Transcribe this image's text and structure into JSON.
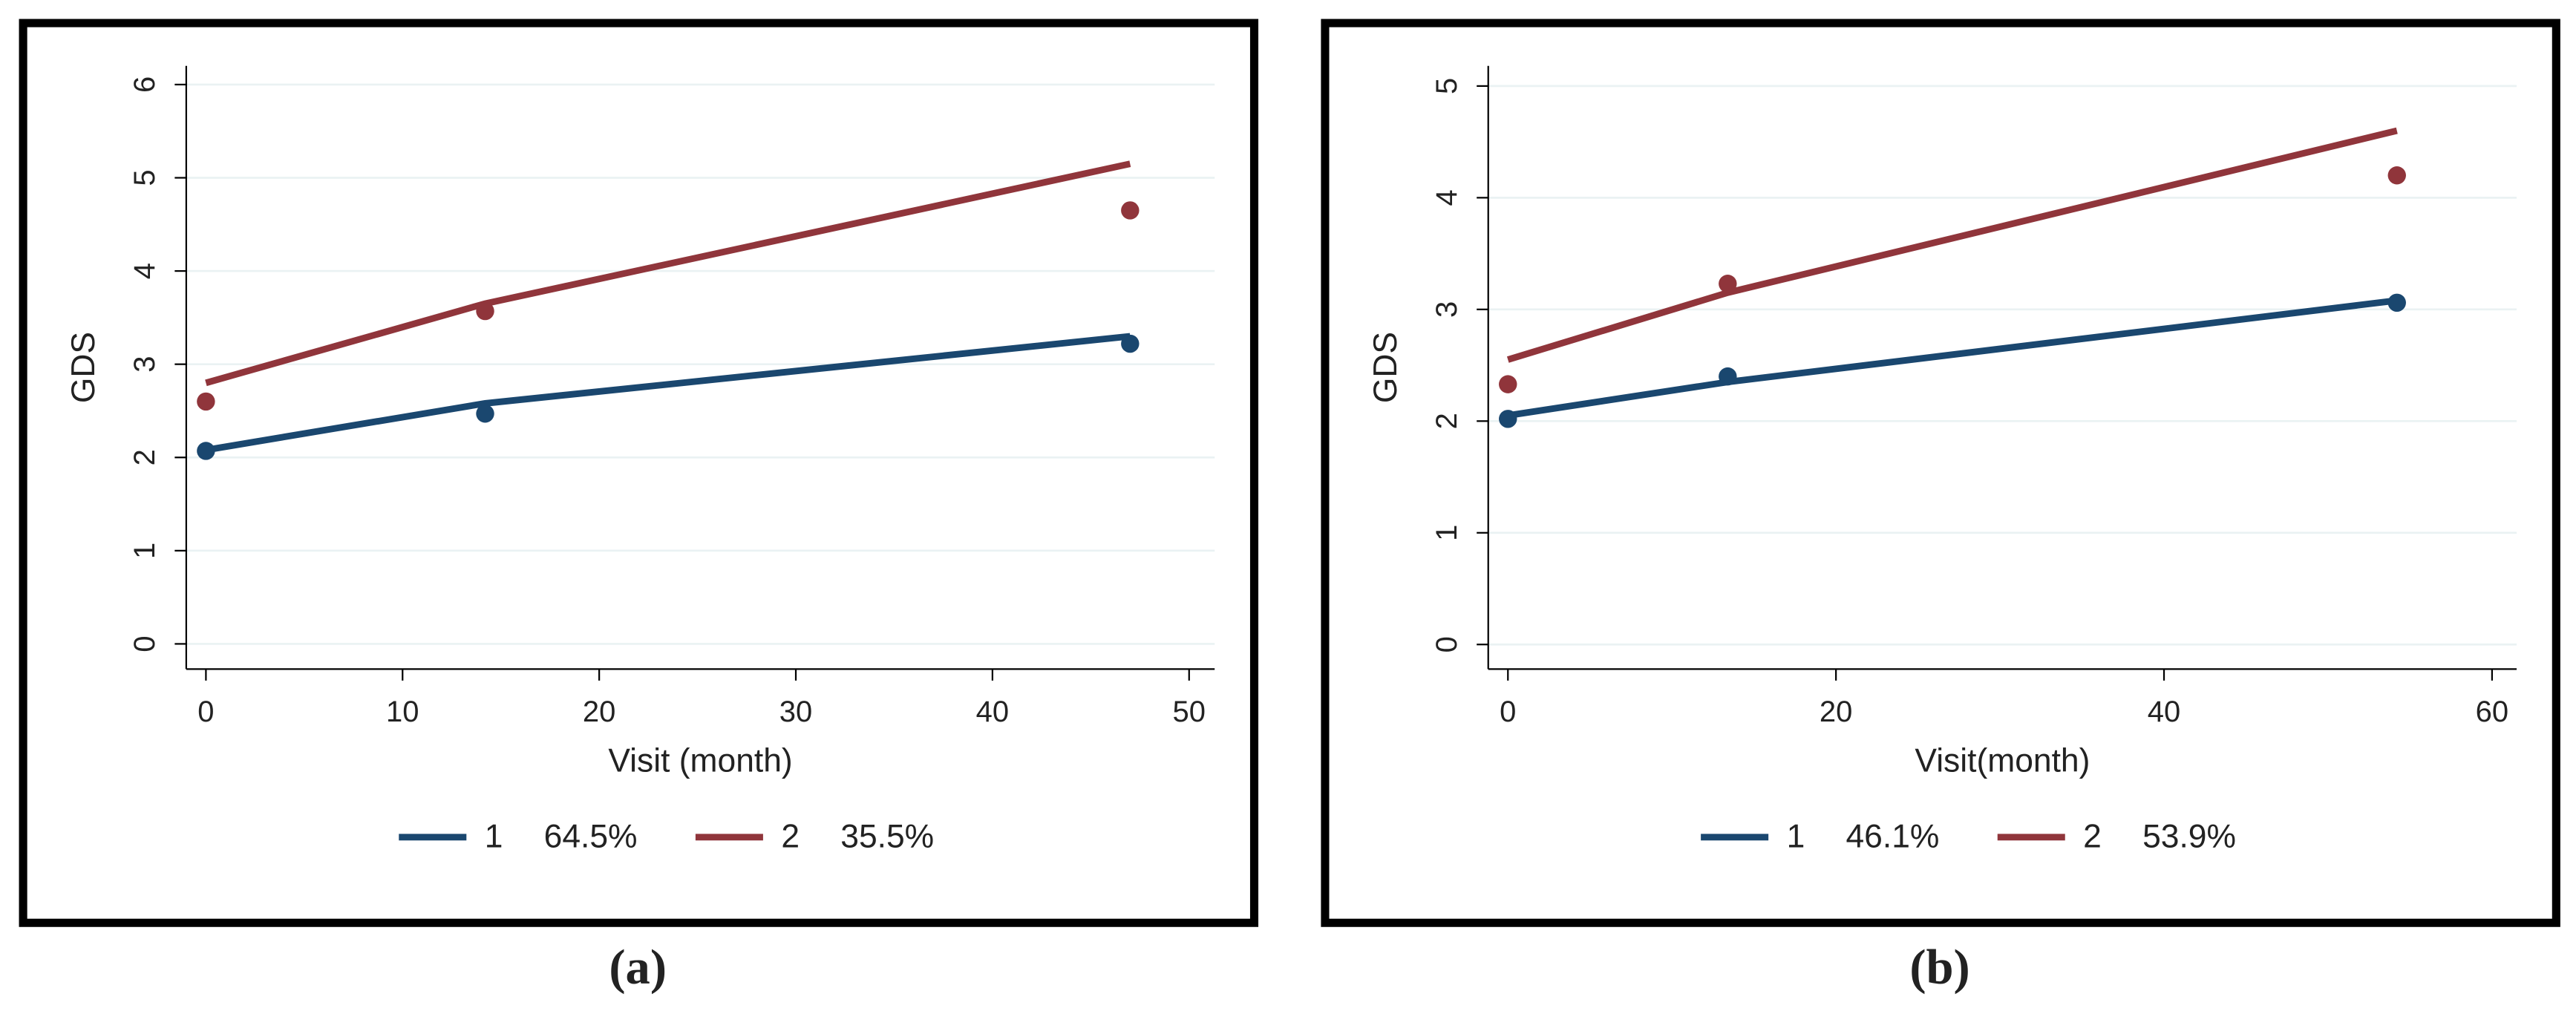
{
  "chart_data": [
    {
      "type": "line",
      "caption": "(a)",
      "xlabel": "Visit (month)",
      "ylabel": "GDS",
      "xlim": [
        -1,
        51.3
      ],
      "ylim": [
        -0.27,
        6.2
      ],
      "xticks": [
        0,
        10,
        20,
        30,
        40,
        50
      ],
      "yticks": [
        0,
        1,
        2,
        3,
        4,
        5,
        6
      ],
      "grid": true,
      "series": [
        {
          "name": "1",
          "share": "64.5%",
          "color": "#1a476f",
          "x": [
            0,
            14.2,
            47
          ],
          "values": [
            2.08,
            2.58,
            3.3
          ],
          "points_x": [
            0,
            14.2,
            47
          ],
          "points_y": [
            2.07,
            2.47,
            3.22
          ]
        },
        {
          "name": "2",
          "share": "35.5%",
          "color": "#90353b",
          "x": [
            0,
            14.2,
            47
          ],
          "values": [
            2.8,
            3.65,
            5.15
          ],
          "points_x": [
            0,
            14.2,
            47
          ],
          "points_y": [
            2.6,
            3.57,
            4.65
          ]
        }
      ]
    },
    {
      "type": "line",
      "caption": "(b)",
      "xlabel": "Visit(month)",
      "ylabel": "GDS",
      "xlim": [
        -1.2,
        61.5
      ],
      "ylim": [
        -0.22,
        5.18
      ],
      "xticks": [
        0,
        20,
        40,
        60
      ],
      "yticks": [
        0,
        1,
        2,
        3,
        4,
        5
      ],
      "grid": true,
      "series": [
        {
          "name": "1",
          "share": "46.1%",
          "color": "#1a476f",
          "x": [
            0,
            13.4,
            54.2
          ],
          "values": [
            2.05,
            2.35,
            3.08
          ],
          "points_x": [
            0,
            13.4,
            54.2
          ],
          "points_y": [
            2.02,
            2.4,
            3.06
          ]
        },
        {
          "name": "2",
          "share": "53.9%",
          "color": "#90353b",
          "x": [
            0,
            13.4,
            54.2
          ],
          "values": [
            2.55,
            3.15,
            4.6
          ],
          "points_x": [
            0,
            13.4,
            54.2
          ],
          "points_y": [
            2.33,
            3.23,
            4.2
          ]
        }
      ]
    }
  ]
}
